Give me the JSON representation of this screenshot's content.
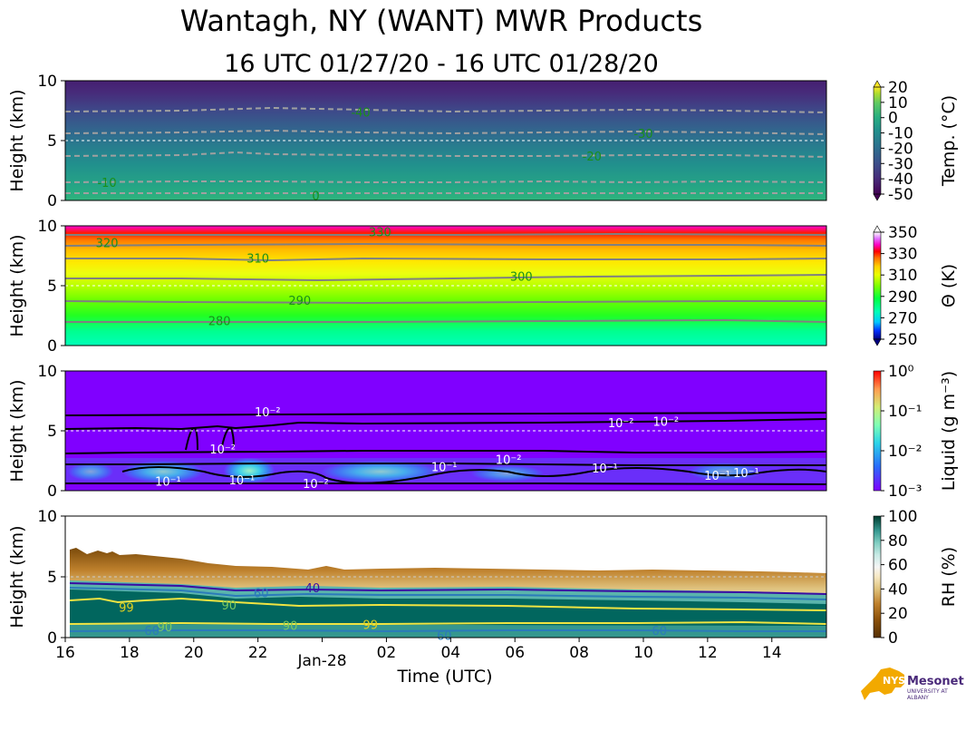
{
  "title": "Wantagh, NY (WANT) MWR Products",
  "subtitle": "16 UTC 01/27/20 - 16 UTC 01/28/20",
  "logo": {
    "nys": "NYS",
    "name": "Mesonet",
    "sub": "UNIVERSITY AT ALBANY"
  },
  "chart_data": [
    {
      "type": "heatmap",
      "panel": "temperature",
      "ylabel": "Height (km)",
      "ylim": [
        0,
        10
      ],
      "yticks": [
        "0",
        "5",
        "10"
      ],
      "colorbar": {
        "label": "Temp. (°C)",
        "ticks": [
          "20",
          "10",
          "0",
          "-10",
          "-20",
          "-30",
          "-40",
          "-50"
        ],
        "range": [
          -50,
          20
        ],
        "colormap": "viridis"
      },
      "contours": [
        {
          "label": "-40",
          "height_km": 7.4,
          "at_hour": 9.2
        },
        {
          "label": "-30",
          "height_km": 5.6,
          "at_hour": 18.0
        },
        {
          "label": "-20",
          "height_km": 3.7,
          "at_hour": 16.4
        },
        {
          "label": "-10",
          "height_km": 1.5,
          "at_hour": 1.3
        },
        {
          "label": "0",
          "height_km": 0.4,
          "at_hour": 7.8
        }
      ]
    },
    {
      "type": "heatmap",
      "panel": "potential_temperature",
      "ylabel": "Height (km)",
      "ylim": [
        0,
        10
      ],
      "yticks": [
        "0",
        "5",
        "10"
      ],
      "colorbar": {
        "label": "Θ (K)",
        "ticks": [
          "350",
          "330",
          "310",
          "290",
          "270",
          "250"
        ],
        "range": [
          250,
          360
        ],
        "colormap": "gist_ncar"
      },
      "contours": [
        {
          "label": "330",
          "height_km": 9.5,
          "at_hour": 9.8
        },
        {
          "label": "320",
          "height_km": 8.6,
          "at_hour": 1.3
        },
        {
          "label": "310",
          "height_km": 7.3,
          "at_hour": 6.0
        },
        {
          "label": "300",
          "height_km": 5.8,
          "at_hour": 14.2
        },
        {
          "label": "290",
          "height_km": 3.8,
          "at_hour": 7.3
        },
        {
          "label": "280",
          "height_km": 2.1,
          "at_hour": 4.8
        }
      ]
    },
    {
      "type": "heatmap",
      "panel": "liquid",
      "ylabel": "Height (km)",
      "ylim": [
        0,
        10
      ],
      "yticks": [
        "0",
        "5",
        "10"
      ],
      "colorbar": {
        "label": "Liquid (g m⁻³)",
        "ticks": [
          "10⁰",
          "10⁻¹",
          "10⁻²",
          "10⁻³"
        ],
        "range": [
          0.001,
          1
        ],
        "scale": "log",
        "colormap": "rainbow"
      },
      "contours": [
        {
          "label": "10⁻²",
          "height_km": 5.7,
          "at_hour": 17.3
        },
        {
          "label": "10⁻²",
          "height_km": 5.8,
          "at_hour": 18.7
        },
        {
          "label": "10⁻²",
          "height_km": 6.6,
          "at_hour": 6.3
        },
        {
          "label": "10⁻²",
          "height_km": 3.5,
          "at_hour": 4.9
        },
        {
          "label": "10⁻²",
          "height_km": 2.6,
          "at_hour": 13.8
        },
        {
          "label": "10⁻²",
          "height_km": 0.6,
          "at_hour": 7.8
        },
        {
          "label": "10⁻¹",
          "height_km": 1.9,
          "at_hour": 16.8
        },
        {
          "label": "10⁻¹",
          "height_km": 0.8,
          "at_hour": 3.2
        },
        {
          "label": "10⁻¹",
          "height_km": 0.9,
          "at_hour": 5.5
        },
        {
          "label": "10⁻¹",
          "height_km": 2.0,
          "at_hour": 11.8
        },
        {
          "label": "10⁻¹",
          "height_km": 1.3,
          "at_hour": 20.3
        },
        {
          "label": "10⁻¹",
          "height_km": 1.5,
          "at_hour": 21.2
        }
      ]
    },
    {
      "type": "heatmap",
      "panel": "relative_humidity",
      "ylabel": "Height (km)",
      "xlabel": "Time (UTC)",
      "ylim": [
        0,
        10
      ],
      "yticks": [
        "0",
        "5",
        "10"
      ],
      "xticks": [
        "16",
        "18",
        "20",
        "22",
        "Jan-28",
        "02",
        "04",
        "06",
        "08",
        "10",
        "12",
        "14"
      ],
      "colorbar": {
        "label": "RH (%)",
        "ticks": [
          "100",
          "80",
          "60",
          "40",
          "20",
          "0"
        ],
        "range": [
          0,
          105
        ],
        "colormap": "BrBG"
      },
      "contours": [
        {
          "label": "40",
          "height_km": 4.1,
          "at_hour": 7.7
        },
        {
          "label": "60",
          "height_km": 3.7,
          "at_hour": 6.1
        },
        {
          "label": "90",
          "height_km": 2.7,
          "at_hour": 5.1
        },
        {
          "label": "99",
          "height_km": 2.5,
          "at_hour": 1.9
        },
        {
          "label": "90",
          "height_km": 0.9,
          "at_hour": 3.1
        },
        {
          "label": "60",
          "height_km": 0.6,
          "at_hour": 2.7
        },
        {
          "label": "60",
          "height_km": 0.6,
          "at_hour": 18.5
        },
        {
          "label": "90",
          "height_km": 1.0,
          "at_hour": 7.0
        },
        {
          "label": "99",
          "height_km": 1.1,
          "at_hour": 9.5
        },
        {
          "label": "60",
          "height_km": 0.2,
          "at_hour": 11.8
        }
      ]
    }
  ]
}
